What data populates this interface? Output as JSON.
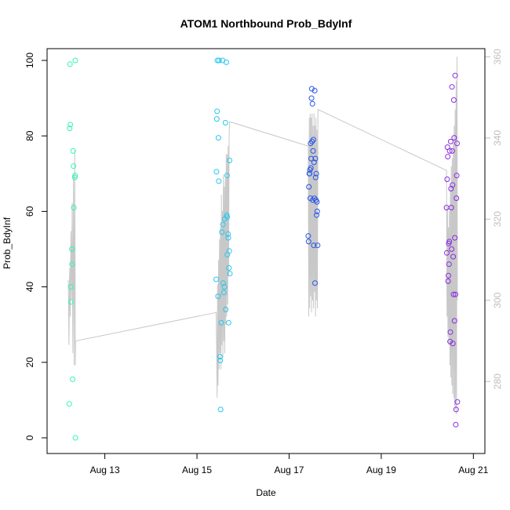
{
  "chart_data": {
    "type": "scatter",
    "title": "ATOM1 Northbound Prob_BdyInf",
    "xlabel": "Date",
    "ylabel": "Prob_BdyInf",
    "x_unit": "date",
    "xlim": [
      "2023-08-11T22:00",
      "2023-08-21T06:00"
    ],
    "ylim": [
      0,
      100
    ],
    "x_ticks": [
      "Aug 13",
      "Aug 15",
      "Aug 17",
      "Aug 19",
      "Aug 21"
    ],
    "x_tick_values": [
      "2023-08-13",
      "2023-08-15",
      "2023-08-17",
      "2023-08-19",
      "2023-08-21"
    ],
    "y_ticks": [
      "0",
      "20",
      "40",
      "60",
      "80",
      "100"
    ],
    "y_right_ticks": [
      "280",
      "300",
      "320",
      "340",
      "360"
    ],
    "y_right_range": [
      258,
      362
    ],
    "colors": {
      "line": "#c8c8c8",
      "right_axis": "#bdbdbd",
      "points_aug12": "#33f5b5",
      "points_aug15": "#25c8f0",
      "points_aug17": "#2a55e8",
      "points_aug20": "#8a2be2"
    },
    "series": [
      {
        "color": "#33f5b5",
        "points": [
          {
            "x": "2023-08-12T05:30",
            "y": 9
          },
          {
            "x": "2023-08-12T05:40",
            "y": 82
          },
          {
            "x": "2023-08-12T05:50",
            "y": 99
          },
          {
            "x": "2023-08-12T06:00",
            "y": 83
          },
          {
            "x": "2023-08-12T06:15",
            "y": 40
          },
          {
            "x": "2023-08-12T06:20",
            "y": 36
          },
          {
            "x": "2023-08-12T06:50",
            "y": 50
          },
          {
            "x": "2023-08-12T06:55",
            "y": 46
          },
          {
            "x": "2023-08-12T07:15",
            "y": 15.5
          },
          {
            "x": "2023-08-12T07:30",
            "y": 76
          },
          {
            "x": "2023-08-12T07:40",
            "y": 72
          },
          {
            "x": "2023-08-12T07:50",
            "y": 61
          },
          {
            "x": "2023-08-12T08:20",
            "y": 69
          },
          {
            "x": "2023-08-12T08:30",
            "y": 69.5
          },
          {
            "x": "2023-08-12T08:35",
            "y": 100
          },
          {
            "x": "2023-08-12T08:40",
            "y": 0
          }
        ]
      },
      {
        "color": "#25c8f0",
        "points": [
          {
            "x": "2023-08-15T10:00",
            "y": 42
          },
          {
            "x": "2023-08-15T10:10",
            "y": 70.5
          },
          {
            "x": "2023-08-15T10:20",
            "y": 84.5
          },
          {
            "x": "2023-08-15T10:30",
            "y": 86.5
          },
          {
            "x": "2023-08-15T10:40",
            "y": 100
          },
          {
            "x": "2023-08-15T11:00",
            "y": 37.5
          },
          {
            "x": "2023-08-15T11:10",
            "y": 79.5
          },
          {
            "x": "2023-08-15T11:20",
            "y": 68
          },
          {
            "x": "2023-08-15T11:30",
            "y": 100
          },
          {
            "x": "2023-08-15T12:00",
            "y": 21.5
          },
          {
            "x": "2023-08-15T12:10",
            "y": 20.5
          },
          {
            "x": "2023-08-15T12:20",
            "y": 7.5
          },
          {
            "x": "2023-08-15T12:40",
            "y": 30.5
          },
          {
            "x": "2023-08-15T13:00",
            "y": 54.5
          },
          {
            "x": "2023-08-15T13:20",
            "y": 100
          },
          {
            "x": "2023-08-15T13:30",
            "y": 56.5
          },
          {
            "x": "2023-08-15T13:40",
            "y": 41
          },
          {
            "x": "2023-08-15T14:00",
            "y": 38.5
          },
          {
            "x": "2023-08-15T14:20",
            "y": 40
          },
          {
            "x": "2023-08-15T14:30",
            "y": 58
          },
          {
            "x": "2023-08-15T14:50",
            "y": 83.5
          },
          {
            "x": "2023-08-15T15:00",
            "y": 34
          },
          {
            "x": "2023-08-15T15:20",
            "y": 99.5
          },
          {
            "x": "2023-08-15T15:30",
            "y": 59
          },
          {
            "x": "2023-08-15T15:40",
            "y": 69.5
          },
          {
            "x": "2023-08-15T15:45",
            "y": 58.5
          },
          {
            "x": "2023-08-15T15:50",
            "y": 48.5
          },
          {
            "x": "2023-08-15T16:10",
            "y": 54
          },
          {
            "x": "2023-08-15T16:20",
            "y": 53
          },
          {
            "x": "2023-08-15T16:30",
            "y": 30.5
          },
          {
            "x": "2023-08-15T16:40",
            "y": 45
          },
          {
            "x": "2023-08-15T16:50",
            "y": 49.5
          },
          {
            "x": "2023-08-15T17:00",
            "y": 73.5
          },
          {
            "x": "2023-08-15T17:10",
            "y": 43.5
          }
        ]
      },
      {
        "color": "#2a55e8",
        "points": [
          {
            "x": "2023-08-17T10:00",
            "y": 53.5
          },
          {
            "x": "2023-08-17T10:10",
            "y": 52
          },
          {
            "x": "2023-08-17T10:20",
            "y": 66.5
          },
          {
            "x": "2023-08-17T10:30",
            "y": 70
          },
          {
            "x": "2023-08-17T10:40",
            "y": 70
          },
          {
            "x": "2023-08-17T10:50",
            "y": 71
          },
          {
            "x": "2023-08-17T11:00",
            "y": 63.5
          },
          {
            "x": "2023-08-17T11:10",
            "y": 78
          },
          {
            "x": "2023-08-17T11:20",
            "y": 71.5
          },
          {
            "x": "2023-08-17T11:30",
            "y": 74
          },
          {
            "x": "2023-08-17T11:40",
            "y": 90
          },
          {
            "x": "2023-08-17T11:50",
            "y": 92.5
          },
          {
            "x": "2023-08-17T12:00",
            "y": 78.5
          },
          {
            "x": "2023-08-17T12:10",
            "y": 88.5
          },
          {
            "x": "2023-08-17T12:20",
            "y": 63
          },
          {
            "x": "2023-08-17T12:30",
            "y": 76
          },
          {
            "x": "2023-08-17T12:40",
            "y": 79
          },
          {
            "x": "2023-08-17T12:50",
            "y": 51
          },
          {
            "x": "2023-08-17T13:00",
            "y": 73
          },
          {
            "x": "2023-08-17T13:10",
            "y": 63.5
          },
          {
            "x": "2023-08-17T13:20",
            "y": 92
          },
          {
            "x": "2023-08-17T13:30",
            "y": 41
          },
          {
            "x": "2023-08-17T13:40",
            "y": 74
          },
          {
            "x": "2023-08-17T13:50",
            "y": 69
          },
          {
            "x": "2023-08-17T14:00",
            "y": 63
          },
          {
            "x": "2023-08-17T14:10",
            "y": 70
          },
          {
            "x": "2023-08-17T14:20",
            "y": 59
          },
          {
            "x": "2023-08-17T14:30",
            "y": 62.5
          },
          {
            "x": "2023-08-17T14:40",
            "y": 60
          },
          {
            "x": "2023-08-17T14:50",
            "y": 51
          }
        ]
      },
      {
        "color": "#8a2be2",
        "points": [
          {
            "x": "2023-08-20T10:00",
            "y": 61
          },
          {
            "x": "2023-08-20T10:10",
            "y": 49
          },
          {
            "x": "2023-08-20T10:20",
            "y": 68.5
          },
          {
            "x": "2023-08-20T10:30",
            "y": 77
          },
          {
            "x": "2023-08-20T10:40",
            "y": 74.5
          },
          {
            "x": "2023-08-20T10:50",
            "y": 41.5
          },
          {
            "x": "2023-08-20T11:00",
            "y": 43
          },
          {
            "x": "2023-08-20T11:10",
            "y": 51.5
          },
          {
            "x": "2023-08-20T11:20",
            "y": 46
          },
          {
            "x": "2023-08-20T11:30",
            "y": 52
          },
          {
            "x": "2023-08-20T11:40",
            "y": 76
          },
          {
            "x": "2023-08-20T11:50",
            "y": 25.5
          },
          {
            "x": "2023-08-20T12:00",
            "y": 28
          },
          {
            "x": "2023-08-20T12:10",
            "y": 78.5
          },
          {
            "x": "2023-08-20T12:20",
            "y": 66
          },
          {
            "x": "2023-08-20T12:30",
            "y": 61
          },
          {
            "x": "2023-08-20T12:40",
            "y": 50
          },
          {
            "x": "2023-08-20T12:50",
            "y": 93
          },
          {
            "x": "2023-08-20T13:00",
            "y": 76
          },
          {
            "x": "2023-08-20T13:10",
            "y": 67
          },
          {
            "x": "2023-08-20T13:20",
            "y": 25
          },
          {
            "x": "2023-08-20T13:30",
            "y": 48
          },
          {
            "x": "2023-08-20T13:40",
            "y": 38
          },
          {
            "x": "2023-08-20T13:50",
            "y": 89.5
          },
          {
            "x": "2023-08-20T14:00",
            "y": 79.5
          },
          {
            "x": "2023-08-20T14:10",
            "y": 31
          },
          {
            "x": "2023-08-20T14:20",
            "y": 53
          },
          {
            "x": "2023-08-20T14:30",
            "y": 96
          },
          {
            "x": "2023-08-20T14:40",
            "y": 38
          },
          {
            "x": "2023-08-20T14:50",
            "y": 3.5
          },
          {
            "x": "2023-08-20T15:00",
            "y": 7.5
          },
          {
            "x": "2023-08-20T15:10",
            "y": 63.5
          },
          {
            "x": "2023-08-20T15:20",
            "y": 69.5
          },
          {
            "x": "2023-08-20T15:30",
            "y": 78
          },
          {
            "x": "2023-08-20T15:40",
            "y": 9.5
          }
        ]
      }
    ],
    "line_right_axis": [
      [
        "2023-08-12T05:00",
        305
      ],
      [
        "2023-08-12T05:20",
        289
      ],
      [
        "2023-08-12T05:40",
        308
      ],
      [
        "2023-08-12T06:00",
        296
      ],
      [
        "2023-08-12T06:20",
        317
      ],
      [
        "2023-08-12T06:40",
        300
      ],
      [
        "2023-08-12T07:00",
        324
      ],
      [
        "2023-08-12T07:20",
        287
      ],
      [
        "2023-08-12T07:40",
        331
      ],
      [
        "2023-08-12T08:00",
        284
      ],
      [
        "2023-08-12T08:20",
        337
      ],
      [
        "2023-08-12T08:40",
        284
      ],
      [
        "2023-08-12T08:50",
        290
      ],
      [
        "2023-08-15T10:00",
        297
      ],
      [
        "2023-08-15T10:15",
        288
      ],
      [
        "2023-08-15T10:30",
        276
      ],
      [
        "2023-08-15T10:45",
        304
      ],
      [
        "2023-08-15T11:00",
        279
      ],
      [
        "2023-08-15T11:15",
        310
      ],
      [
        "2023-08-15T11:30",
        283
      ],
      [
        "2023-08-15T11:45",
        315
      ],
      [
        "2023-08-15T12:00",
        287
      ],
      [
        "2023-08-15T12:15",
        318
      ],
      [
        "2023-08-15T12:30",
        283
      ],
      [
        "2023-08-15T12:45",
        326
      ],
      [
        "2023-08-15T13:00",
        289
      ],
      [
        "2023-08-15T13:15",
        322
      ],
      [
        "2023-08-15T13:30",
        286
      ],
      [
        "2023-08-15T13:45",
        331
      ],
      [
        "2023-08-15T14:00",
        290
      ],
      [
        "2023-08-15T14:15",
        328
      ],
      [
        "2023-08-15T14:30",
        287
      ],
      [
        "2023-08-15T14:45",
        330
      ],
      [
        "2023-08-15T15:00",
        294
      ],
      [
        "2023-08-15T15:15",
        336
      ],
      [
        "2023-08-15T15:30",
        296
      ],
      [
        "2023-08-15T15:45",
        336
      ],
      [
        "2023-08-15T16:00",
        299
      ],
      [
        "2023-08-15T16:15",
        338
      ],
      [
        "2023-08-15T16:30",
        306
      ],
      [
        "2023-08-15T16:45",
        340
      ],
      [
        "2023-08-15T17:00",
        344
      ],
      [
        "2023-08-17T10:00",
        338
      ],
      [
        "2023-08-17T10:15",
        296
      ],
      [
        "2023-08-17T10:30",
        345
      ],
      [
        "2023-08-17T10:45",
        298
      ],
      [
        "2023-08-17T11:00",
        346
      ],
      [
        "2023-08-17T11:15",
        301
      ],
      [
        "2023-08-17T11:30",
        345
      ],
      [
        "2023-08-17T11:45",
        297
      ],
      [
        "2023-08-17T12:00",
        346
      ],
      [
        "2023-08-17T12:15",
        300
      ],
      [
        "2023-08-17T12:30",
        343
      ],
      [
        "2023-08-17T12:45",
        298
      ],
      [
        "2023-08-17T13:00",
        346
      ],
      [
        "2023-08-17T13:15",
        302
      ],
      [
        "2023-08-17T13:30",
        343
      ],
      [
        "2023-08-17T13:45",
        296
      ],
      [
        "2023-08-17T14:00",
        345
      ],
      [
        "2023-08-17T14:15",
        300
      ],
      [
        "2023-08-17T14:30",
        342
      ],
      [
        "2023-08-17T14:45",
        298
      ],
      [
        "2023-08-17T15:00",
        347
      ],
      [
        "2023-08-20T10:00",
        332
      ],
      [
        "2023-08-20T10:15",
        296
      ],
      [
        "2023-08-20T10:30",
        323
      ],
      [
        "2023-08-20T10:45",
        291
      ],
      [
        "2023-08-20T11:00",
        318
      ],
      [
        "2023-08-20T11:15",
        289
      ],
      [
        "2023-08-20T11:30",
        322
      ],
      [
        "2023-08-20T11:45",
        284
      ],
      [
        "2023-08-20T12:00",
        328
      ],
      [
        "2023-08-20T12:15",
        281
      ],
      [
        "2023-08-20T12:30",
        333
      ],
      [
        "2023-08-20T12:45",
        279
      ],
      [
        "2023-08-20T13:00",
        335
      ],
      [
        "2023-08-20T13:15",
        277
      ],
      [
        "2023-08-20T13:30",
        339
      ],
      [
        "2023-08-20T13:45",
        276
      ],
      [
        "2023-08-20T14:00",
        343
      ],
      [
        "2023-08-20T14:15",
        274
      ],
      [
        "2023-08-20T14:30",
        347
      ],
      [
        "2023-08-20T14:45",
        273
      ],
      [
        "2023-08-20T15:00",
        354
      ],
      [
        "2023-08-20T15:15",
        272
      ],
      [
        "2023-08-20T15:30",
        360
      ],
      [
        "2023-08-20T15:40",
        300
      ]
    ]
  }
}
